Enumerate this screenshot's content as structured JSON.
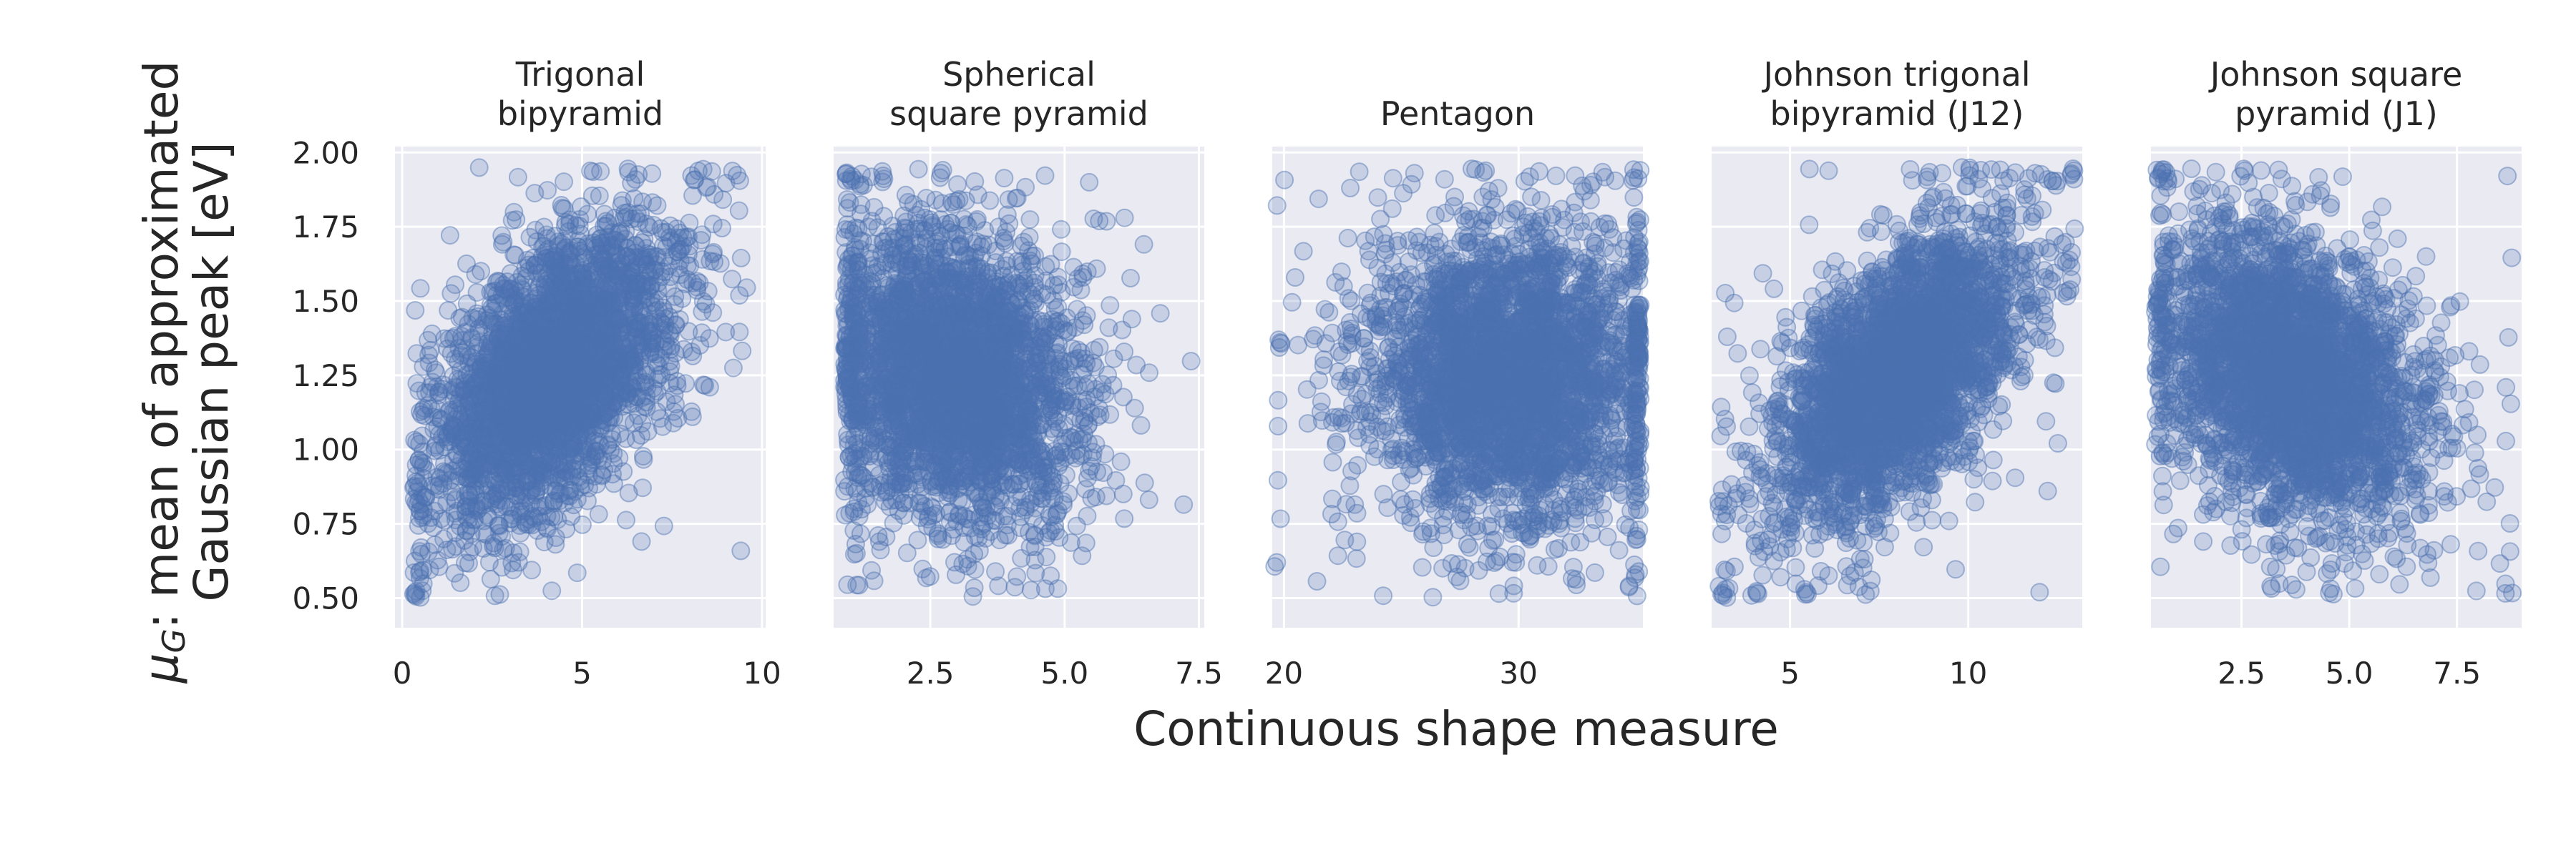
{
  "colors": {
    "point": "#4c72b0",
    "panel_background": "#eaeaf2",
    "grid": "#ffffff",
    "text": "#262626"
  },
  "chart_data": {
    "type": "scatter",
    "xlabel": "Continuous shape measure",
    "ylabel_lines": [
      "μ_G: mean of approximated",
      "Gaussian peak [eV]"
    ],
    "ylim": [
      0.4,
      2.02
    ],
    "yticks": [
      0.5,
      0.75,
      1.0,
      1.25,
      1.5,
      1.75,
      2.0
    ],
    "ytick_labels": [
      "0.50",
      "0.75",
      "1.00",
      "1.25",
      "1.50",
      "1.75",
      "2.00"
    ],
    "point_count_per_panel": 3200,
    "panels": [
      {
        "title_lines": [
          "Trigonal",
          "bipyramid"
        ],
        "xlim": [
          -0.2,
          10.1
        ],
        "xticks": [
          0,
          5,
          10
        ],
        "xtick_labels": [
          "0",
          "5",
          "10"
        ],
        "x_range": [
          0.3,
          9.6
        ],
        "x_center": 4.2,
        "x_spread": 1.6,
        "y_center": 1.25,
        "y_spread": 0.24,
        "correlation": 0.5
      },
      {
        "title_lines": [
          "Spherical",
          "square pyramid"
        ],
        "xlim": [
          0.7,
          7.6
        ],
        "xticks": [
          2.5,
          5.0,
          7.5
        ],
        "xtick_labels": [
          "2.5",
          "5.0",
          "7.5"
        ],
        "x_range": [
          0.9,
          7.4
        ],
        "x_center": 2.9,
        "x_spread": 1.1,
        "y_center": 1.25,
        "y_spread": 0.24,
        "correlation": -0.2
      },
      {
        "title_lines": [
          "Pentagon"
        ],
        "xlim": [
          19.5,
          35.3
        ],
        "xticks": [
          20,
          30
        ],
        "xtick_labels": [
          "20",
          "30"
        ],
        "x_range": [
          19.6,
          35.2
        ],
        "x_center": 29.5,
        "x_spread": 3.0,
        "y_center": 1.25,
        "y_spread": 0.24,
        "correlation": 0.0
      },
      {
        "title_lines": [
          "Johnson trigonal",
          "bipyramid (J12)"
        ],
        "xlim": [
          2.8,
          13.2
        ],
        "xticks": [
          5,
          10
        ],
        "xtick_labels": [
          "5",
          "10"
        ],
        "x_range": [
          3.0,
          13.0
        ],
        "x_center": 8.0,
        "x_spread": 1.7,
        "y_center": 1.25,
        "y_spread": 0.24,
        "correlation": 0.55
      },
      {
        "title_lines": [
          "Johnson square",
          "pyramid (J1)"
        ],
        "xlim": [
          0.4,
          9.0
        ],
        "xticks": [
          2.5,
          5.0,
          7.5
        ],
        "xtick_labels": [
          "2.5",
          "5.0",
          "7.5"
        ],
        "x_range": [
          0.5,
          8.9
        ],
        "x_center": 3.6,
        "x_spread": 1.5,
        "y_center": 1.25,
        "y_spread": 0.24,
        "correlation": -0.3
      }
    ]
  }
}
